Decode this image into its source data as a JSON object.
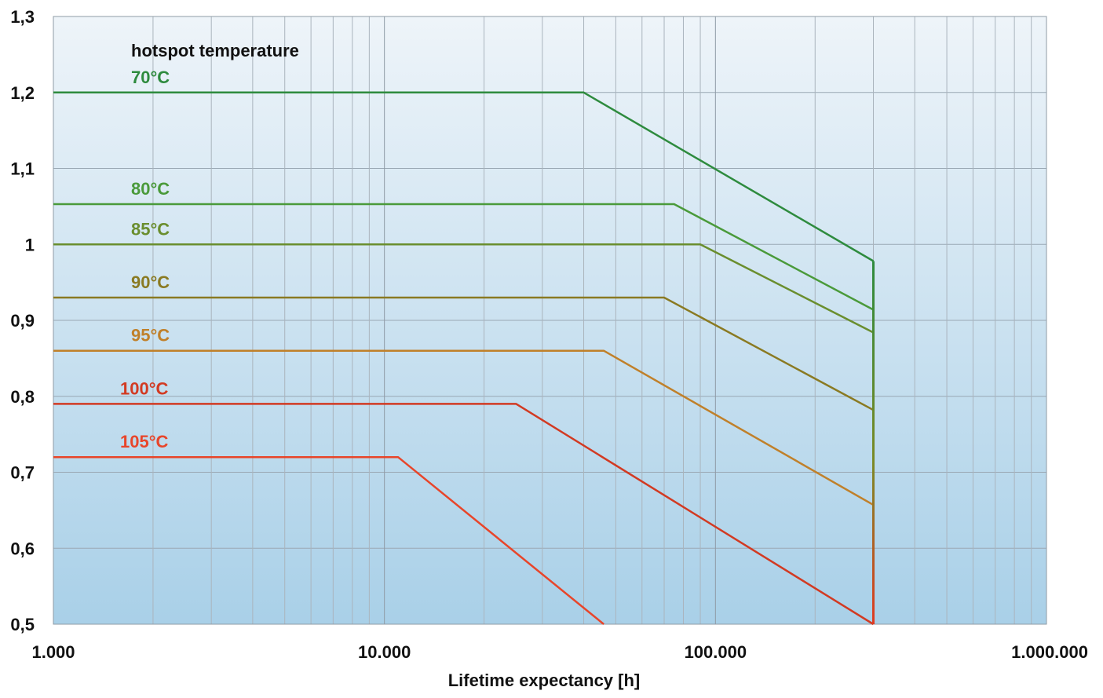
{
  "chart_data": {
    "type": "line",
    "title": "",
    "xlabel": "Lifetime expectancy [h]",
    "ylabel": "",
    "xscale": "log",
    "xlim": [
      1000,
      1000000
    ],
    "ylim": [
      0.5,
      1.3
    ],
    "grid": true,
    "background": "light-blue gradient",
    "x_tick_values": [
      1000,
      10000,
      100000,
      1000000
    ],
    "x_tick_labels": [
      "1.000",
      "10.000",
      "100.000",
      "1.000.000"
    ],
    "y_tick_values": [
      0.5,
      0.6,
      0.7,
      0.8,
      0.9,
      1.0,
      1.1,
      1.2,
      1.3
    ],
    "y_tick_labels": [
      "0,5",
      "0,6",
      "0,7",
      "0,8",
      "0,9",
      "1",
      "1,1",
      "1,2",
      "1,3"
    ],
    "legend_title": "hotspot temperature",
    "series": [
      {
        "name": "70°C",
        "color": "#2e8b3e",
        "points": [
          [
            1000,
            1.2
          ],
          [
            40000,
            1.2
          ],
          [
            300000,
            0.978
          ]
        ]
      },
      {
        "name": "80°C",
        "color": "#4a9a3a",
        "points": [
          [
            1000,
            1.053
          ],
          [
            75000,
            1.053
          ],
          [
            300000,
            0.914
          ]
        ]
      },
      {
        "name": "85°C",
        "color": "#6a8e2e",
        "points": [
          [
            1000,
            1.0
          ],
          [
            90000,
            1.0
          ],
          [
            300000,
            0.884
          ]
        ]
      },
      {
        "name": "90°C",
        "color": "#8a7a22",
        "points": [
          [
            1000,
            0.93
          ],
          [
            70000,
            0.93
          ],
          [
            300000,
            0.782
          ]
        ]
      },
      {
        "name": "95°C",
        "color": "#c0802a",
        "points": [
          [
            1000,
            0.86
          ],
          [
            46000,
            0.86
          ],
          [
            300000,
            0.657
          ]
        ]
      },
      {
        "name": "100°C",
        "color": "#d23a22",
        "points": [
          [
            1000,
            0.79
          ],
          [
            25000,
            0.79
          ],
          [
            300000,
            0.5
          ]
        ]
      },
      {
        "name": "105°C",
        "color": "#e8452a",
        "points": [
          [
            1000,
            0.72
          ],
          [
            11000,
            0.72
          ],
          [
            46000,
            0.5
          ]
        ]
      }
    ],
    "vertical_cutoff": {
      "x": 300000,
      "y_from": 0.5,
      "y_to": 0.978
    }
  }
}
